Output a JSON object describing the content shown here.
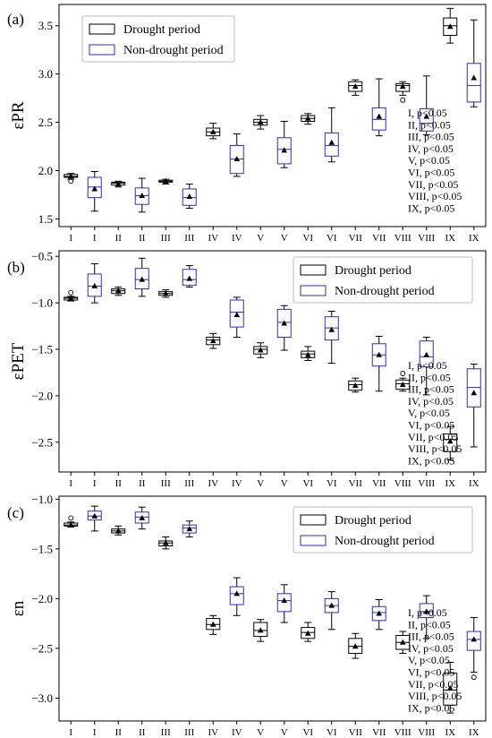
{
  "chart_data": [
    {
      "type": "box",
      "panel_label": "(a)",
      "ylabel": "εPR",
      "ylim": [
        1.42,
        3.72
      ],
      "yticks": [
        1.5,
        2.0,
        2.5,
        3.0,
        3.5
      ],
      "tick_labels": [
        "1.5",
        "2.0",
        "2.5",
        "3.0",
        "3.5"
      ],
      "categories": [
        "I",
        "I",
        "II",
        "II",
        "III",
        "III",
        "IV",
        "IV",
        "V",
        "V",
        "VI",
        "VI",
        "VII",
        "VII",
        "VIII",
        "VIII",
        "IX",
        "IX"
      ],
      "legend": {
        "position": "top-left",
        "entries": [
          "Drought period",
          "Non-drought period"
        ]
      },
      "annotations": [
        "I, p<0.05",
        "II, p<0.05",
        "III, p<0.05",
        "IV, p<0.05",
        "V, p<0.05",
        "VI, p<0.05",
        "VII, p<0.05",
        "VIII, p<0.05",
        "IX, p<0.05"
      ],
      "series": [
        {
          "name": "Drought period",
          "color": "#000000",
          "boxes": [
            {
              "group": "I",
              "whislo": 1.91,
              "q1": 1.93,
              "med": 1.94,
              "q3": 1.96,
              "whishi": 1.97,
              "mean": 1.94,
              "fliers": [
                1.89
              ]
            },
            {
              "group": "II",
              "whislo": 1.83,
              "q1": 1.85,
              "med": 1.87,
              "q3": 1.88,
              "whishi": 1.89,
              "mean": 1.86,
              "fliers": []
            },
            {
              "group": "III",
              "whislo": 1.86,
              "q1": 1.88,
              "med": 1.89,
              "q3": 1.9,
              "whishi": 1.91,
              "mean": 1.89,
              "fliers": []
            },
            {
              "group": "IV",
              "whislo": 2.33,
              "q1": 2.36,
              "med": 2.4,
              "q3": 2.44,
              "whishi": 2.49,
              "mean": 2.4,
              "fliers": []
            },
            {
              "group": "V",
              "whislo": 2.43,
              "q1": 2.47,
              "med": 2.5,
              "q3": 2.53,
              "whishi": 2.57,
              "mean": 2.5,
              "fliers": []
            },
            {
              "group": "VI",
              "whislo": 2.48,
              "q1": 2.51,
              "med": 2.54,
              "q3": 2.57,
              "whishi": 2.59,
              "mean": 2.54,
              "fliers": []
            },
            {
              "group": "VII",
              "whislo": 2.78,
              "q1": 2.82,
              "med": 2.88,
              "q3": 2.92,
              "whishi": 2.94,
              "mean": 2.87,
              "fliers": []
            },
            {
              "group": "VIII",
              "whislo": 2.78,
              "q1": 2.82,
              "med": 2.88,
              "q3": 2.9,
              "whishi": 2.92,
              "mean": 2.87,
              "fliers": [
                2.73
              ]
            },
            {
              "group": "IX",
              "whislo": 3.32,
              "q1": 3.4,
              "med": 3.5,
              "q3": 3.58,
              "whishi": 3.68,
              "mean": 3.49,
              "fliers": []
            }
          ]
        },
        {
          "name": "Non-drought period",
          "color": "#2b2bcc",
          "boxes": [
            {
              "group": "I",
              "whislo": 1.58,
              "q1": 1.72,
              "med": 1.83,
              "q3": 1.93,
              "whishi": 1.99,
              "mean": 1.81,
              "fliers": []
            },
            {
              "group": "II",
              "whislo": 1.57,
              "q1": 1.65,
              "med": 1.74,
              "q3": 1.82,
              "whishi": 1.92,
              "mean": 1.74,
              "fliers": []
            },
            {
              "group": "III",
              "whislo": 1.61,
              "q1": 1.64,
              "med": 1.72,
              "q3": 1.81,
              "whishi": 1.86,
              "mean": 1.73,
              "fliers": []
            },
            {
              "group": "IV",
              "whislo": 1.94,
              "q1": 1.97,
              "med": 2.12,
              "q3": 2.26,
              "whishi": 2.38,
              "mean": 2.12,
              "fliers": []
            },
            {
              "group": "V",
              "whislo": 2.03,
              "q1": 2.07,
              "med": 2.22,
              "q3": 2.34,
              "whishi": 2.51,
              "mean": 2.21,
              "fliers": []
            },
            {
              "group": "VI",
              "whislo": 2.09,
              "q1": 2.15,
              "med": 2.26,
              "q3": 2.39,
              "whishi": 2.65,
              "mean": 2.29,
              "fliers": []
            },
            {
              "group": "VII",
              "whislo": 2.36,
              "q1": 2.42,
              "med": 2.53,
              "q3": 2.65,
              "whishi": 2.95,
              "mean": 2.56,
              "fliers": []
            },
            {
              "group": "VIII",
              "whislo": 2.37,
              "q1": 2.41,
              "med": 2.49,
              "q3": 2.64,
              "whishi": 2.98,
              "mean": 2.56,
              "fliers": []
            },
            {
              "group": "IX",
              "whislo": 2.66,
              "q1": 2.71,
              "med": 2.88,
              "q3": 3.11,
              "whishi": 3.56,
              "mean": 2.96,
              "fliers": []
            }
          ]
        }
      ]
    },
    {
      "type": "box",
      "panel_label": "(b)",
      "ylabel": "εPET",
      "ylim": [
        -2.82,
        -0.44
      ],
      "yticks": [
        -2.5,
        -2.0,
        -1.5,
        -1.0,
        -0.5
      ],
      "tick_labels": [
        "−2.5",
        "−2.0",
        "−1.5",
        "−1.0",
        "−0.5"
      ],
      "categories": [
        "I",
        "I",
        "II",
        "II",
        "III",
        "III",
        "IV",
        "IV",
        "V",
        "V",
        "VI",
        "VI",
        "VII",
        "VII",
        "VIII",
        "VIII",
        "IX",
        "IX"
      ],
      "legend": {
        "position": "top-right",
        "entries": [
          "Drought period",
          "Non-drought period"
        ]
      },
      "annotations": [
        "I, p<0.05",
        "II, p<0.05",
        "III, p<0.05",
        "IV, p<0.05",
        "V, p<0.05",
        "VI, p<0.05",
        "VII, p<0.05",
        "VIII, p<0.05",
        "IX, p<0.05"
      ],
      "series": [
        {
          "name": "Drought period",
          "color": "#000000",
          "boxes": [
            {
              "group": "I",
              "whislo": -0.98,
              "q1": -0.97,
              "med": -0.95,
              "q3": -0.94,
              "whishi": -0.93,
              "mean": -0.95,
              "fliers": [
                -0.89
              ]
            },
            {
              "group": "II",
              "whislo": -0.92,
              "q1": -0.9,
              "med": -0.87,
              "q3": -0.85,
              "whishi": -0.83,
              "mean": -0.87,
              "fliers": []
            },
            {
              "group": "III",
              "whislo": -0.94,
              "q1": -0.92,
              "med": -0.9,
              "q3": -0.88,
              "whishi": -0.86,
              "mean": -0.9,
              "fliers": []
            },
            {
              "group": "IV",
              "whislo": -1.49,
              "q1": -1.45,
              "med": -1.4,
              "q3": -1.37,
              "whishi": -1.33,
              "mean": -1.41,
              "fliers": []
            },
            {
              "group": "V",
              "whislo": -1.59,
              "q1": -1.55,
              "med": -1.5,
              "q3": -1.47,
              "whishi": -1.43,
              "mean": -1.51,
              "fliers": []
            },
            {
              "group": "VI",
              "whislo": -1.62,
              "q1": -1.59,
              "med": -1.55,
              "q3": -1.52,
              "whishi": -1.47,
              "mean": -1.56,
              "fliers": []
            },
            {
              "group": "VII",
              "whislo": -1.96,
              "q1": -1.94,
              "med": -1.88,
              "q3": -1.84,
              "whishi": -1.81,
              "mean": -1.89,
              "fliers": []
            },
            {
              "group": "VIII",
              "whislo": -1.95,
              "q1": -1.93,
              "med": -1.87,
              "q3": -1.83,
              "whishi": -1.81,
              "mean": -1.88,
              "fliers": [
                -1.76
              ]
            },
            {
              "group": "IX",
              "whislo": -2.69,
              "q1": -2.6,
              "med": -2.47,
              "q3": -2.41,
              "whishi": -2.33,
              "mean": -2.49,
              "fliers": []
            }
          ]
        },
        {
          "name": "Non-drought period",
          "color": "#2b2bcc",
          "boxes": [
            {
              "group": "I",
              "whislo": -1.0,
              "q1": -0.93,
              "med": -0.82,
              "q3": -0.69,
              "whishi": -0.58,
              "mean": -0.82,
              "fliers": []
            },
            {
              "group": "II",
              "whislo": -0.93,
              "q1": -0.85,
              "med": -0.75,
              "q3": -0.63,
              "whishi": -0.52,
              "mean": -0.75,
              "fliers": []
            },
            {
              "group": "III",
              "whislo": -0.83,
              "q1": -0.81,
              "med": -0.75,
              "q3": -0.64,
              "whishi": -0.6,
              "mean": -0.74,
              "fliers": []
            },
            {
              "group": "IV",
              "whislo": -1.37,
              "q1": -1.26,
              "med": -1.1,
              "q3": -0.97,
              "whishi": -0.94,
              "mean": -1.13,
              "fliers": []
            },
            {
              "group": "V",
              "whislo": -1.51,
              "q1": -1.37,
              "med": -1.21,
              "q3": -1.07,
              "whishi": -1.03,
              "mean": -1.22,
              "fliers": []
            },
            {
              "group": "VI",
              "whislo": -1.65,
              "q1": -1.4,
              "med": -1.27,
              "q3": -1.15,
              "whishi": -1.09,
              "mean": -1.29,
              "fliers": []
            },
            {
              "group": "VII",
              "whislo": -1.95,
              "q1": -1.68,
              "med": -1.56,
              "q3": -1.44,
              "whishi": -1.36,
              "mean": -1.56,
              "fliers": []
            },
            {
              "group": "VIII",
              "whislo": -1.99,
              "q1": -1.69,
              "med": -1.58,
              "q3": -1.41,
              "whishi": -1.37,
              "mean": -1.56,
              "fliers": []
            },
            {
              "group": "IX",
              "whislo": -2.55,
              "q1": -2.12,
              "med": -1.91,
              "q3": -1.71,
              "whishi": -1.66,
              "mean": -1.97,
              "fliers": []
            }
          ]
        }
      ]
    },
    {
      "type": "box",
      "panel_label": "(c)",
      "ylabel": "εn",
      "ylim": [
        -3.23,
        -0.97
      ],
      "yticks": [
        -3.0,
        -2.5,
        -2.0,
        -1.5,
        -1.0
      ],
      "tick_labels": [
        "−3.0",
        "−2.5",
        "−2.0",
        "−1.5",
        "−1.0"
      ],
      "categories": [
        "I",
        "I",
        "II",
        "II",
        "III",
        "III",
        "IV",
        "IV",
        "V",
        "V",
        "VI",
        "VI",
        "VII",
        "VII",
        "VIII",
        "VIII",
        "IX",
        "IX"
      ],
      "legend": {
        "position": "top-right",
        "entries": [
          "Drought period",
          "Non-drought period"
        ]
      },
      "annotations": [
        "I, p<0.05",
        "II, p<0.05",
        "III, p<0.05",
        "IV, p<0.05",
        "V, p<0.05",
        "VI, p<0.05",
        "VII, p<0.05",
        "VIII, p<0.05",
        "IX, p<0.05"
      ],
      "series": [
        {
          "name": "Drought period",
          "color": "#000000",
          "boxes": [
            {
              "group": "I",
              "whislo": -1.28,
              "q1": -1.27,
              "med": -1.26,
              "q3": -1.24,
              "whishi": -1.23,
              "mean": -1.26,
              "fliers": [
                -1.19
              ]
            },
            {
              "group": "II",
              "whislo": -1.36,
              "q1": -1.34,
              "med": -1.32,
              "q3": -1.3,
              "whishi": -1.27,
              "mean": -1.32,
              "fliers": []
            },
            {
              "group": "III",
              "whislo": -1.5,
              "q1": -1.47,
              "med": -1.44,
              "q3": -1.42,
              "whishi": -1.38,
              "mean": -1.44,
              "fliers": []
            },
            {
              "group": "IV",
              "whislo": -2.36,
              "q1": -2.31,
              "med": -2.26,
              "q3": -2.2,
              "whishi": -2.17,
              "mean": -2.26,
              "fliers": []
            },
            {
              "group": "V",
              "whislo": -2.43,
              "q1": -2.38,
              "med": -2.32,
              "q3": -2.24,
              "whishi": -2.21,
              "mean": -2.32,
              "fliers": []
            },
            {
              "group": "VI",
              "whislo": -2.43,
              "q1": -2.4,
              "med": -2.34,
              "q3": -2.29,
              "whishi": -2.24,
              "mean": -2.35,
              "fliers": []
            },
            {
              "group": "VII",
              "whislo": -2.6,
              "q1": -2.55,
              "med": -2.48,
              "q3": -2.4,
              "whishi": -2.35,
              "mean": -2.48,
              "fliers": []
            },
            {
              "group": "VIII",
              "whislo": -2.55,
              "q1": -2.51,
              "med": -2.44,
              "q3": -2.37,
              "whishi": -2.33,
              "mean": -2.44,
              "fliers": []
            },
            {
              "group": "IX",
              "whislo": -3.15,
              "q1": -3.07,
              "med": -2.92,
              "q3": -2.75,
              "whishi": -2.64,
              "mean": -2.9,
              "fliers": []
            }
          ]
        },
        {
          "name": "Non-drought period",
          "color": "#2b2bcc",
          "boxes": [
            {
              "group": "I",
              "whislo": -1.32,
              "q1": -1.21,
              "med": -1.17,
              "q3": -1.12,
              "whishi": -1.07,
              "mean": -1.17,
              "fliers": []
            },
            {
              "group": "II",
              "whislo": -1.3,
              "q1": -1.24,
              "med": -1.18,
              "q3": -1.13,
              "whishi": -1.08,
              "mean": -1.19,
              "fliers": []
            },
            {
              "group": "III",
              "whislo": -1.38,
              "q1": -1.34,
              "med": -1.29,
              "q3": -1.26,
              "whishi": -1.22,
              "mean": -1.3,
              "fliers": []
            },
            {
              "group": "IV",
              "whislo": -2.17,
              "q1": -2.06,
              "med": -1.95,
              "q3": -1.88,
              "whishi": -1.79,
              "mean": -1.95,
              "fliers": []
            },
            {
              "group": "V",
              "whislo": -2.24,
              "q1": -2.13,
              "med": -2.02,
              "q3": -1.95,
              "whishi": -1.86,
              "mean": -2.02,
              "fliers": []
            },
            {
              "group": "VI",
              "whislo": -2.31,
              "q1": -2.14,
              "med": -2.07,
              "q3": -2.0,
              "whishi": -1.93,
              "mean": -2.07,
              "fliers": []
            },
            {
              "group": "VII",
              "whislo": -2.31,
              "q1": -2.22,
              "med": -2.14,
              "q3": -2.08,
              "whishi": -2.01,
              "mean": -2.15,
              "fliers": []
            },
            {
              "group": "VIII",
              "whislo": -2.4,
              "q1": -2.19,
              "med": -2.13,
              "q3": -2.05,
              "whishi": -1.97,
              "mean": -2.13,
              "fliers": []
            },
            {
              "group": "IX",
              "whislo": -2.74,
              "q1": -2.52,
              "med": -2.41,
              "q3": -2.33,
              "whishi": -2.19,
              "mean": -2.41,
              "fliers": [
                -2.79
              ]
            }
          ]
        }
      ]
    }
  ]
}
